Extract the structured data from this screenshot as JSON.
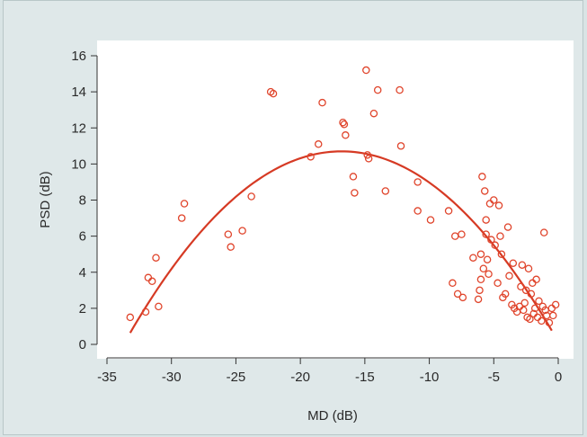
{
  "chart_data": {
    "type": "scatter",
    "title": "",
    "xlabel": "MD (dB)",
    "ylabel": "PSD (dB)",
    "xlim": [
      -35,
      0
    ],
    "ylim": [
      0,
      16
    ],
    "x_ticks": [
      -35,
      -30,
      -25,
      -20,
      -15,
      -10,
      -5,
      0
    ],
    "y_ticks": [
      0,
      2,
      4,
      6,
      8,
      10,
      12,
      14,
      16
    ],
    "x_tick_labels": [
      "-35",
      "-30",
      "-25",
      "-20",
      "-15",
      "-10",
      "-5",
      "0"
    ],
    "y_tick_labels": [
      "0",
      "2",
      "4",
      "6",
      "8",
      "10",
      "12",
      "14",
      "16"
    ],
    "grid": false,
    "marker_color": "#e0452c",
    "curve_color": "#d63a24",
    "points": [
      [
        -33.2,
        1.5
      ],
      [
        -32,
        1.8
      ],
      [
        -31.8,
        3.7
      ],
      [
        -31.5,
        3.5
      ],
      [
        -31.2,
        4.8
      ],
      [
        -31,
        2.1
      ],
      [
        -29.2,
        7.0
      ],
      [
        -29,
        7.8
      ],
      [
        -25.6,
        6.1
      ],
      [
        -25.4,
        5.4
      ],
      [
        -24.5,
        6.3
      ],
      [
        -23.8,
        8.2
      ],
      [
        -22.3,
        14.0
      ],
      [
        -22.1,
        13.9
      ],
      [
        -19.2,
        10.4
      ],
      [
        -18.6,
        11.1
      ],
      [
        -18.3,
        13.4
      ],
      [
        -16.7,
        12.3
      ],
      [
        -16.6,
        12.2
      ],
      [
        -16.5,
        11.6
      ],
      [
        -15.9,
        9.3
      ],
      [
        -15.8,
        8.4
      ],
      [
        -14.9,
        15.2
      ],
      [
        -14.8,
        10.5
      ],
      [
        -14.7,
        10.3
      ],
      [
        -14.3,
        12.8
      ],
      [
        -14,
        14.1
      ],
      [
        -13.4,
        8.5
      ],
      [
        -12.3,
        14.1
      ],
      [
        -12.2,
        11.0
      ],
      [
        -10.9,
        9.0
      ],
      [
        -10.9,
        7.4
      ],
      [
        -9.9,
        6.9
      ],
      [
        -8.5,
        7.4
      ],
      [
        -8.2,
        3.4
      ],
      [
        -8.0,
        6.0
      ],
      [
        -7.8,
        2.8
      ],
      [
        -7.5,
        6.1
      ],
      [
        -7.4,
        2.6
      ],
      [
        -6.6,
        4.8
      ],
      [
        -6.2,
        2.5
      ],
      [
        -6.1,
        3.0
      ],
      [
        -6.0,
        5.0
      ],
      [
        -6.0,
        3.6
      ],
      [
        -5.9,
        9.3
      ],
      [
        -5.8,
        4.2
      ],
      [
        -5.7,
        8.5
      ],
      [
        -5.6,
        6.9
      ],
      [
        -5.6,
        6.1
      ],
      [
        -5.5,
        4.7
      ],
      [
        -5.4,
        3.9
      ],
      [
        -5.3,
        7.8
      ],
      [
        -5.2,
        5.8
      ],
      [
        -5.0,
        8.0
      ],
      [
        -4.9,
        5.5
      ],
      [
        -4.7,
        3.4
      ],
      [
        -4.6,
        7.7
      ],
      [
        -4.5,
        6.0
      ],
      [
        -4.4,
        5.0
      ],
      [
        -4.3,
        2.6
      ],
      [
        -4.1,
        2.8
      ],
      [
        -3.9,
        6.5
      ],
      [
        -3.8,
        3.8
      ],
      [
        -3.6,
        2.2
      ],
      [
        -3.5,
        4.5
      ],
      [
        -3.4,
        2.0
      ],
      [
        -3.2,
        1.8
      ],
      [
        -3.0,
        2.1
      ],
      [
        -2.9,
        3.2
      ],
      [
        -2.8,
        4.4
      ],
      [
        -2.7,
        1.9
      ],
      [
        -2.6,
        2.3
      ],
      [
        -2.5,
        3.0
      ],
      [
        -2.4,
        1.5
      ],
      [
        -2.3,
        4.2
      ],
      [
        -2.2,
        1.4
      ],
      [
        -2.1,
        2.8
      ],
      [
        -2.0,
        3.4
      ],
      [
        -1.9,
        1.7
      ],
      [
        -1.8,
        2.0
      ],
      [
        -1.7,
        3.6
      ],
      [
        -1.6,
        1.5
      ],
      [
        -1.5,
        2.4
      ],
      [
        -1.3,
        1.3
      ],
      [
        -1.2,
        2.1
      ],
      [
        -1.1,
        6.2
      ],
      [
        -1.0,
        1.9
      ],
      [
        -0.9,
        1.6
      ],
      [
        -0.7,
        1.2
      ],
      [
        -0.5,
        2.0
      ],
      [
        -0.4,
        1.6
      ],
      [
        -0.2,
        2.2
      ]
    ],
    "fit_curve": {
      "type": "quadratic",
      "vertex_x": -16.8,
      "vertex_y": 10.7,
      "a": -0.0374,
      "x_range": [
        -33.2,
        -0.5
      ]
    }
  }
}
